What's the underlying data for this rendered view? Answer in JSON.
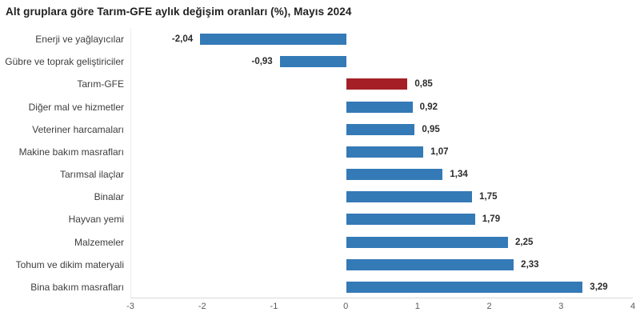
{
  "title": "Alt gruplara göre Tarım-GFE aylık değişim oranları (%), Mayıs 2024",
  "chart_data": {
    "type": "bar",
    "orientation": "horizontal",
    "title": "Alt gruplara göre Tarım-GFE aylık değişim oranları (%), Mayıs 2024",
    "categories": [
      "Enerji ve yağlayıcılar",
      "Gübre ve toprak geliştiriciler",
      "Tarım-GFE",
      "Diğer mal ve hizmetler",
      "Veteriner harcamaları",
      "Makine bakım masrafları",
      "Tarımsal ilaçlar",
      "Binalar",
      "Hayvan yemi",
      "Malzemeler",
      "Tohum ve dikim materyali",
      "Bina bakım masrafları"
    ],
    "values": [
      -2.04,
      -0.93,
      0.85,
      0.92,
      0.95,
      1.07,
      1.34,
      1.75,
      1.79,
      2.25,
      2.33,
      3.29
    ],
    "value_labels": [
      "-2,04",
      "-0,93",
      "0,85",
      "0,92",
      "0,95",
      "1,07",
      "1,34",
      "1,75",
      "1,79",
      "2,25",
      "2,33",
      "3,29"
    ],
    "highlight_index": 2,
    "highlight_category": "Tarım-GFE",
    "bar_color": "#347ab6",
    "highlight_color": "#a52026",
    "xlabel": "",
    "ylabel": "",
    "xlim": [
      -3,
      4
    ],
    "x_ticks": [
      "-3",
      "-2",
      "-1",
      "0",
      "1",
      "2",
      "3",
      "4"
    ],
    "grid": false,
    "legend": "none"
  }
}
